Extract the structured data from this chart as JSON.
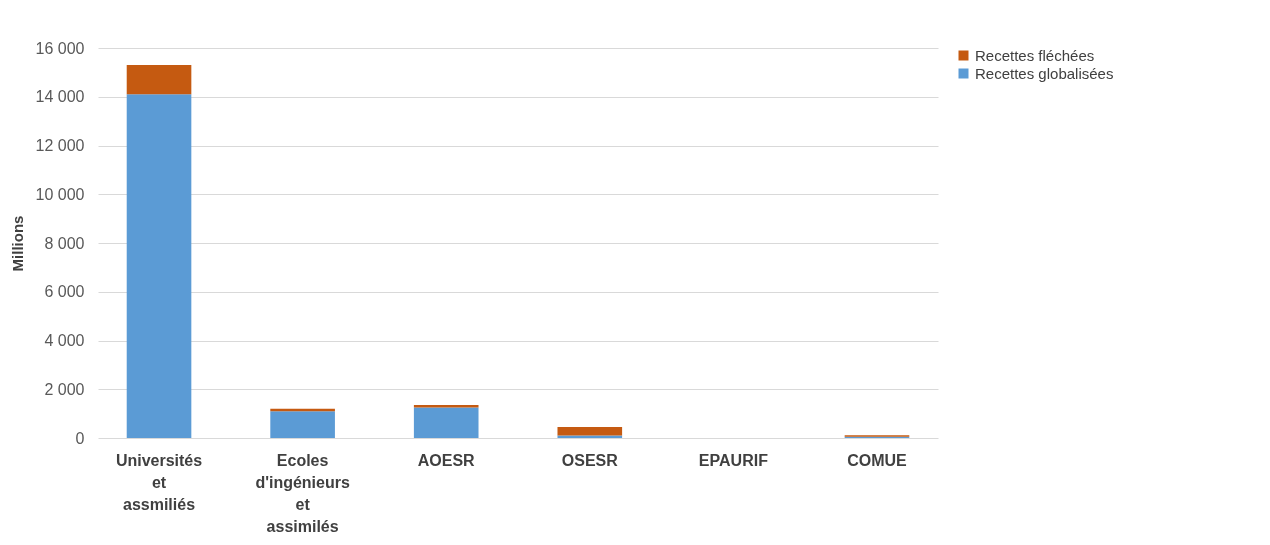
{
  "chart_data": {
    "type": "bar",
    "stacked": true,
    "ylabel": "Millions",
    "categories": [
      "Universités et assmiliés",
      "Ecoles d'ingénieurs et assimilés",
      "AOESR",
      "OSESR",
      "EPAURIF",
      "COMUE"
    ],
    "series": [
      {
        "name": "Recettes globalisées",
        "color": "#5b9bd5",
        "values": [
          14100,
          1100,
          1250,
          100,
          null,
          50
        ]
      },
      {
        "name": "Recettes fléchées",
        "color": "#c55a11",
        "values": [
          1200,
          100,
          100,
          350,
          0,
          60
        ]
      }
    ],
    "ylim": [
      0,
      16000
    ],
    "yticks": [
      {
        "value": 0,
        "label": "0"
      },
      {
        "value": 2000,
        "label": "2 000"
      },
      {
        "value": 4000,
        "label": "4 000"
      },
      {
        "value": 6000,
        "label": "6 000"
      },
      {
        "value": 8000,
        "label": "8 000"
      },
      {
        "value": 10000,
        "label": "10 000"
      },
      {
        "value": 12000,
        "label": "12 000"
      },
      {
        "value": 14000,
        "label": "14 000"
      },
      {
        "value": 16000,
        "label": "16 000"
      }
    ],
    "grid": "y",
    "legend": "right"
  }
}
